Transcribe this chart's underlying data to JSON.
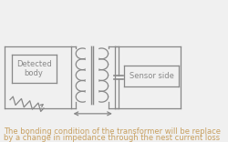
{
  "bg_color": "#f0f0f0",
  "line_color": "#888888",
  "text_color": "#c8a060",
  "label_detected": "Detected\nbody",
  "label_sensor": "Sensor side",
  "text_line1": "The bonding condition of the transformer will be replace",
  "text_line2": "by a change in impedance through the nest current loss",
  "text_fontsize": 6.0,
  "label_fontsize": 6.0
}
